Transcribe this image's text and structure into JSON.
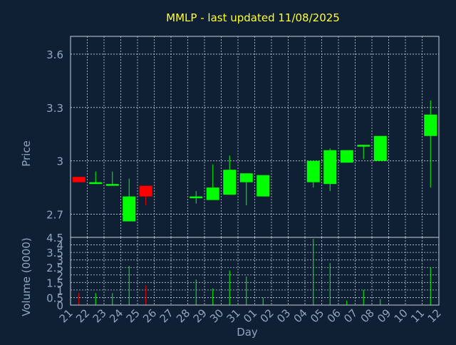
{
  "chart_data": {
    "type": "candlestick",
    "title": "MMLP - last updated 11/08/2025",
    "xlabel": "Day",
    "x_ticks": [
      "21",
      "22",
      "23",
      "24",
      "25",
      "26",
      "27",
      "28",
      "29",
      "30",
      "31",
      "01",
      "02",
      "03",
      "04",
      "05",
      "06",
      "07",
      "08",
      "09",
      "10",
      "11",
      "12"
    ],
    "price_panel": {
      "ylabel": "Price",
      "ylim": [
        2.57,
        3.7
      ],
      "y_ticks": [
        2.7,
        3,
        3.3,
        3.6
      ],
      "y_tick_labels": [
        "2.7",
        "3",
        "3.3",
        "3.6"
      ],
      "grid": true
    },
    "volume_panel": {
      "ylabel": "Volume (0000)",
      "ylim": [
        0,
        4.5
      ],
      "y_ticks": [
        0,
        0.5,
        1,
        1.5,
        2,
        2.5,
        3,
        3.5,
        4,
        4.5
      ],
      "y_tick_labels": [
        "0",
        "0.5",
        "1",
        "1.5",
        "2",
        "2.5",
        "3",
        "3.5",
        "4",
        "4.5"
      ],
      "grid": true
    },
    "colors": {
      "background": "#0f2035",
      "axis_text": "#8fa6bd",
      "title": "#ffff33",
      "grid": "#c8d0d8",
      "up": "#00ff00",
      "down": "#ff0000"
    },
    "candles": [
      {
        "x": 0,
        "open": 2.91,
        "high": 2.91,
        "low": 2.88,
        "close": 2.88,
        "volume": 0.8
      },
      {
        "x": 1,
        "open": 2.87,
        "high": 2.94,
        "low": 2.87,
        "close": 2.88,
        "volume": 0.8
      },
      {
        "x": 2,
        "open": 2.86,
        "high": 2.94,
        "low": 2.86,
        "close": 2.87,
        "volume": 0.8
      },
      {
        "x": 3,
        "open": 2.66,
        "high": 2.9,
        "low": 2.66,
        "close": 2.8,
        "volume": 2.6
      },
      {
        "x": 4,
        "open": 2.86,
        "high": 2.86,
        "low": 2.75,
        "close": 2.8,
        "volume": 1.3
      },
      {
        "x": 7,
        "open": 2.79,
        "high": 2.83,
        "low": 2.76,
        "close": 2.8,
        "volume": 1.7
      },
      {
        "x": 8,
        "open": 2.78,
        "high": 2.98,
        "low": 2.78,
        "close": 2.85,
        "volume": 1.1
      },
      {
        "x": 9,
        "open": 2.81,
        "high": 3.03,
        "low": 2.81,
        "close": 2.95,
        "volume": 2.3
      },
      {
        "x": 10,
        "open": 2.88,
        "high": 2.93,
        "low": 2.75,
        "close": 2.93,
        "volume": 1.9
      },
      {
        "x": 11,
        "open": 2.8,
        "high": 2.92,
        "low": 2.8,
        "close": 2.92,
        "volume": 0.5
      },
      {
        "x": 14,
        "open": 2.88,
        "high": 3.0,
        "low": 2.85,
        "close": 3.0,
        "volume": 4.4
      },
      {
        "x": 15,
        "open": 2.87,
        "high": 3.07,
        "low": 2.83,
        "close": 3.06,
        "volume": 2.8
      },
      {
        "x": 16,
        "open": 2.99,
        "high": 3.06,
        "low": 2.99,
        "close": 3.06,
        "volume": 0.3
      },
      {
        "x": 17,
        "open": 3.08,
        "high": 3.09,
        "low": 3.01,
        "close": 3.09,
        "volume": 1.0
      },
      {
        "x": 18,
        "open": 3.0,
        "high": 3.14,
        "low": 3.0,
        "close": 3.14,
        "volume": 0.4
      },
      {
        "x": 21,
        "open": 3.14,
        "high": 3.34,
        "low": 2.85,
        "close": 3.26,
        "volume": 2.5
      }
    ]
  }
}
